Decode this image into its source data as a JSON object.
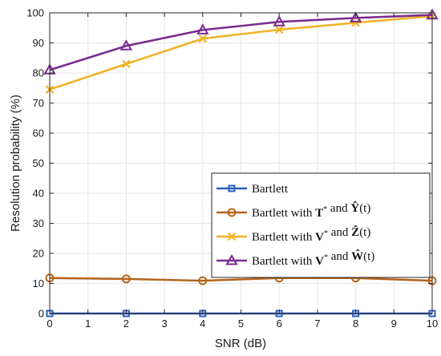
{
  "chart_data": {
    "type": "line",
    "xlabel": "SNR (dB)",
    "ylabel": "Resolution probability (%)",
    "xlim": [
      0,
      10
    ],
    "ylim": [
      0,
      100
    ],
    "xticks": [
      0,
      1,
      2,
      3,
      4,
      5,
      6,
      7,
      8,
      9,
      10
    ],
    "yticks": [
      0,
      10,
      20,
      30,
      40,
      50,
      60,
      70,
      80,
      90,
      100
    ],
    "grid": true,
    "legend_position": "center-right",
    "x": [
      0,
      2,
      4,
      6,
      8,
      10
    ],
    "series": [
      {
        "name": "Bartlett",
        "values": [
          0,
          0,
          0,
          0,
          0,
          0
        ],
        "color": "#2b5fbf",
        "marker": "square",
        "legend": [
          {
            "t": "Bartlett"
          }
        ]
      },
      {
        "name": "Bartlett with T* and Ŷ(t)",
        "values": [
          11.8,
          11.5,
          10.9,
          11.8,
          11.8,
          10.9
        ],
        "color": "#b5651d",
        "marker": "circle",
        "legend": [
          {
            "t": "Bartlett with "
          },
          {
            "t": "T",
            "b": true
          },
          {
            "t": "*",
            "sup": true
          },
          {
            "t": " and "
          },
          {
            "t": "Ŷ",
            "b": true
          },
          {
            "t": "(t)"
          }
        ]
      },
      {
        "name": "Bartlett with V* and Ẑ(t)",
        "values": [
          74.5,
          83,
          91.4,
          94.4,
          96.7,
          98.9
        ],
        "color": "#f0b428",
        "marker": "x",
        "legend": [
          {
            "t": "Bartlett with "
          },
          {
            "t": "V",
            "b": true
          },
          {
            "t": "*",
            "sup": true
          },
          {
            "t": " and "
          },
          {
            "t": "Ẑ",
            "b": true
          },
          {
            "t": "(t)"
          }
        ]
      },
      {
        "name": "Bartlett with V* and Ŵ(t)",
        "values": [
          81,
          89,
          94.3,
          97,
          98.3,
          99.3
        ],
        "color": "#7a2c8f",
        "marker": "triangle",
        "legend": [
          {
            "t": "Bartlett with "
          },
          {
            "t": "V",
            "b": true
          },
          {
            "t": "*",
            "sup": true
          },
          {
            "t": " and "
          },
          {
            "t": "Ŵ",
            "b": true
          },
          {
            "t": "(t)"
          }
        ]
      }
    ]
  }
}
